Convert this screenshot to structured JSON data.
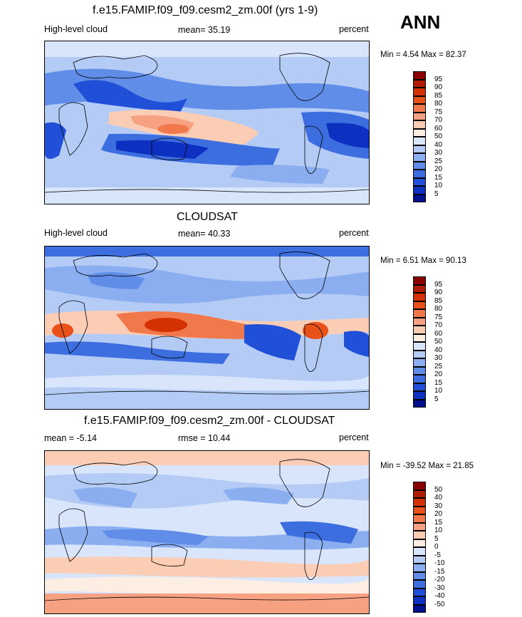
{
  "season": "ANN",
  "panels": [
    {
      "title": "f.e15.FAMIP.f09_f09.cesm2_zm.00f (yrs 1-9)",
      "left_label": "High-level cloud",
      "center_label": "mean=  35.19",
      "units": "percent",
      "minmax": "Min =   4.54 Max =  82.37",
      "kind": "field"
    },
    {
      "title": "CLOUDSAT",
      "left_label": "High-level cloud",
      "center_label": "mean=  40.33",
      "units": "percent",
      "minmax": "Min =   6.51 Max =  90.13",
      "kind": "field"
    },
    {
      "title": "f.e15.FAMIP.f09_f09.cesm2_zm.00f - CLOUDSAT",
      "left_label": "mean =  -5.14",
      "center_label": "rmse =  10.44",
      "units": "percent",
      "minmax": "Min = -39.52 Max =  21.85",
      "kind": "diff"
    }
  ],
  "colorbars": {
    "field": {
      "labels": [
        "95",
        "90",
        "85",
        "80",
        "75",
        "70",
        "60",
        "50",
        "40",
        "30",
        "25",
        "20",
        "15",
        "10",
        "5"
      ],
      "colors": [
        "#8b0000",
        "#b01c00",
        "#d33100",
        "#e8511a",
        "#f0784a",
        "#f6a282",
        "#fbcdb5",
        "#fdeee4",
        "#d8e5fb",
        "#b3cbf5",
        "#8aaef0",
        "#5f8de8",
        "#3c6ee0",
        "#2050d8",
        "#0d30c0",
        "#00108c"
      ]
    },
    "diff": {
      "labels": [
        "50",
        "40",
        "30",
        "20",
        "15",
        "10",
        "5",
        "0",
        "-5",
        "-10",
        "-15",
        "-20",
        "-30",
        "-40",
        "-50"
      ],
      "colors": [
        "#8b0000",
        "#b01c00",
        "#d33100",
        "#e8511a",
        "#f0784a",
        "#f6a282",
        "#fbcdb5",
        "#fdeee4",
        "#d8e5fb",
        "#b3cbf5",
        "#8aaef0",
        "#5f8de8",
        "#3c6ee0",
        "#2050d8",
        "#0d30c0",
        "#00108c"
      ]
    }
  },
  "chart_data": [
    {
      "type": "heatmap",
      "title": "f.e15.FAMIP.f09_f09.cesm2_zm.00f (yrs 1-9)",
      "variable": "High-level cloud",
      "units": "percent",
      "mean": 35.19,
      "min": 4.54,
      "max": 82.37,
      "levels": [
        5,
        10,
        15,
        20,
        25,
        30,
        40,
        50,
        60,
        70,
        75,
        80,
        85,
        90,
        95
      ]
    },
    {
      "type": "heatmap",
      "title": "CLOUDSAT",
      "variable": "High-level cloud",
      "units": "percent",
      "mean": 40.33,
      "min": 6.51,
      "max": 90.13,
      "levels": [
        5,
        10,
        15,
        20,
        25,
        30,
        40,
        50,
        60,
        70,
        75,
        80,
        85,
        90,
        95
      ]
    },
    {
      "type": "heatmap",
      "title": "f.e15.FAMIP.f09_f09.cesm2_zm.00f - CLOUDSAT",
      "units": "percent",
      "mean": -5.14,
      "rmse": 10.44,
      "min": -39.52,
      "max": 21.85,
      "levels": [
        -50,
        -40,
        -30,
        -20,
        -15,
        -10,
        -5,
        0,
        5,
        10,
        15,
        20,
        30,
        40,
        50
      ]
    }
  ]
}
